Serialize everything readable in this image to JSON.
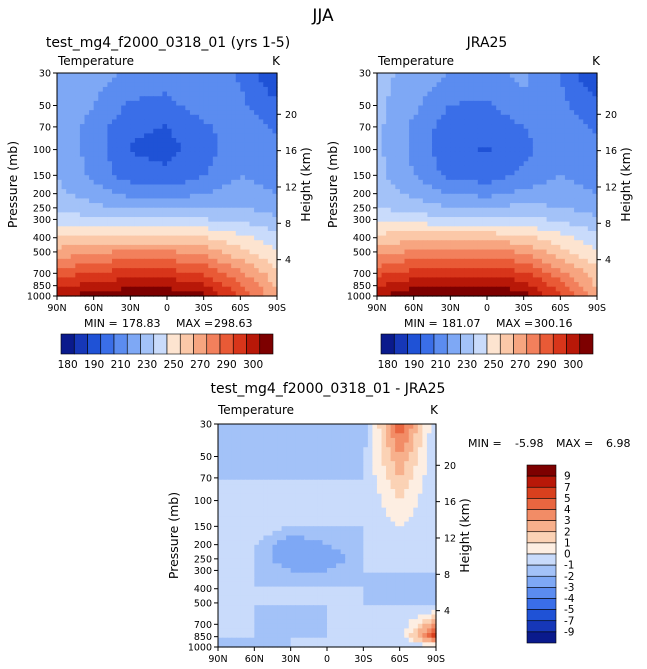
{
  "figure": {
    "season": "JJA"
  },
  "panels": [
    {
      "id": "model",
      "title": "test_mg4_f2000_0318_01 (yrs 1-5)",
      "variable": "Temperature",
      "units": "K",
      "stats": {
        "min_label": "MIN =",
        "min": "178.83",
        "max_label": "MAX =",
        "max": "298.63"
      }
    },
    {
      "id": "obs",
      "title": "JRA25",
      "variable": "Temperature",
      "units": "K",
      "stats": {
        "min_label": "MIN =",
        "min": "181.07",
        "max_label": "MAX =",
        "max": "300.16"
      }
    },
    {
      "id": "diff",
      "title": "test_mg4_f2000_0318_01 - JRA25",
      "variable": "Temperature",
      "units": "K",
      "stats": {
        "min_label": "MIN =",
        "min": "-5.98",
        "max_label": "MAX =",
        "max": "6.98"
      }
    }
  ],
  "axes": {
    "left_label": "Pressure (mb)",
    "right_label": "Height (km)",
    "pressure_ticks": [
      "30",
      "50",
      "70",
      "100",
      "150",
      "200",
      "250",
      "300",
      "400",
      "500",
      "700",
      "850",
      "1000"
    ],
    "height_ticks": [
      "20",
      "16",
      "12",
      "8",
      "4"
    ],
    "lat_ticks": [
      "90N",
      "60N",
      "30N",
      "0",
      "30S",
      "60S",
      "90S"
    ]
  },
  "colorbars": {
    "abs": {
      "colors": [
        "#0a1a8c",
        "#1637b8",
        "#1f52d6",
        "#3a6ee8",
        "#5b8cf0",
        "#7ea8f5",
        "#a3c2f8",
        "#c9dbfb",
        "#fde4d0",
        "#fbc8a8",
        "#f7a580",
        "#f2805c",
        "#e95a36",
        "#d8351a",
        "#b81808",
        "#7d0000"
      ],
      "labels": [
        "180",
        "190",
        "210",
        "230",
        "250",
        "270",
        "290",
        "300"
      ]
    },
    "diff": {
      "colors": [
        "#0a1a8c",
        "#1637b8",
        "#1f52d6",
        "#3a6ee8",
        "#5b8cf0",
        "#7ea8f5",
        "#a3c2f8",
        "#c9dbfb",
        "#fdeee2",
        "#fbd2b5",
        "#f7b08c",
        "#f28c66",
        "#e96640",
        "#d8401e",
        "#b81808",
        "#7d0000"
      ],
      "labels": [
        "9",
        "7",
        "5",
        "4",
        "3",
        "2",
        "1",
        "0",
        "-1",
        "-2",
        "-3",
        "-4",
        "-5",
        "-7",
        "-9"
      ]
    }
  },
  "chart_data": [
    {
      "type": "heatmap",
      "title": "test_mg4_f2000_0318_01 (yrs 1-5)",
      "subtitle": "Temperature",
      "units": "K",
      "xlabel": "",
      "ylabel": "Pressure (mb)",
      "y2label": "Height (km)",
      "x": [
        "90N",
        "60N",
        "30N",
        "0",
        "30S",
        "60S",
        "90S"
      ],
      "y": [
        30,
        50,
        70,
        100,
        150,
        200,
        250,
        300,
        400,
        500,
        700,
        850,
        1000
      ],
      "min": 178.83,
      "max": 298.63,
      "values": [
        [
          222,
          218,
          212,
          210,
          214,
          205,
          190
        ],
        [
          222,
          214,
          205,
          204,
          210,
          208,
          200
        ],
        [
          222,
          210,
          200,
          198,
          205,
          210,
          205
        ],
        [
          222,
          210,
          198,
          196,
          202,
          212,
          208
        ],
        [
          222,
          212,
          202,
          200,
          206,
          214,
          210
        ],
        [
          224,
          218,
          212,
          210,
          214,
          218,
          214
        ],
        [
          228,
          224,
          220,
          220,
          222,
          222,
          218
        ],
        [
          234,
          232,
          230,
          230,
          230,
          228,
          224
        ],
        [
          246,
          248,
          248,
          248,
          246,
          240,
          232
        ],
        [
          256,
          260,
          262,
          262,
          258,
          248,
          238
        ],
        [
          272,
          278,
          280,
          280,
          276,
          262,
          248
        ],
        [
          282,
          288,
          290,
          290,
          286,
          270,
          252
        ],
        [
          290,
          296,
          298,
          298,
          294,
          275,
          255
        ]
      ]
    },
    {
      "type": "heatmap",
      "title": "JRA25",
      "subtitle": "Temperature",
      "units": "K",
      "xlabel": "",
      "ylabel": "Pressure (mb)",
      "y2label": "Height (km)",
      "x": [
        "90N",
        "60N",
        "30N",
        "0",
        "30S",
        "60S",
        "90S"
      ],
      "y": [
        30,
        50,
        70,
        100,
        150,
        200,
        250,
        300,
        400,
        500,
        700,
        850,
        1000
      ],
      "min": 181.07,
      "max": 300.16,
      "values": [
        [
          224,
          220,
          214,
          212,
          216,
          206,
          190
        ],
        [
          224,
          216,
          206,
          205,
          212,
          208,
          200
        ],
        [
          224,
          212,
          202,
          200,
          206,
          210,
          205
        ],
        [
          224,
          212,
          200,
          198,
          204,
          212,
          208
        ],
        [
          224,
          214,
          204,
          202,
          208,
          214,
          210
        ],
        [
          226,
          220,
          214,
          212,
          216,
          218,
          214
        ],
        [
          230,
          226,
          222,
          222,
          224,
          222,
          218
        ],
        [
          236,
          234,
          232,
          232,
          232,
          228,
          224
        ],
        [
          248,
          250,
          250,
          250,
          248,
          240,
          232
        ],
        [
          258,
          262,
          264,
          264,
          260,
          248,
          238
        ],
        [
          274,
          280,
          282,
          282,
          278,
          264,
          248
        ],
        [
          284,
          290,
          292,
          292,
          288,
          272,
          252
        ],
        [
          292,
          298,
          300,
          300,
          296,
          278,
          256
        ]
      ]
    },
    {
      "type": "heatmap",
      "title": "test_mg4_f2000_0318_01 - JRA25",
      "subtitle": "Temperature",
      "units": "K",
      "xlabel": "",
      "ylabel": "Pressure (mb)",
      "y2label": "Height (km)",
      "x": [
        "90N",
        "60N",
        "30N",
        "0",
        "30S",
        "60S",
        "90S"
      ],
      "y": [
        30,
        50,
        70,
        100,
        150,
        200,
        250,
        300,
        400,
        500,
        700,
        850,
        1000
      ],
      "min": -5.98,
      "max": 6.98,
      "values": [
        [
          -1,
          -1,
          -1,
          -1,
          -2,
          5,
          -1
        ],
        [
          -1,
          -2,
          -1,
          -2,
          -1,
          3,
          -1
        ],
        [
          -1,
          -1,
          -1,
          -1,
          -1,
          2,
          -1
        ],
        [
          -1,
          0,
          -1,
          -1,
          -1,
          1,
          -1
        ],
        [
          0,
          0,
          -1,
          -1,
          -1,
          0,
          -1
        ],
        [
          -1,
          -1,
          -3,
          -2,
          -1,
          -1,
          -1
        ],
        [
          -1,
          -1,
          -3,
          -3,
          -1,
          -1,
          0
        ],
        [
          -1,
          -1,
          -2,
          -2,
          -1,
          -1,
          -1
        ],
        [
          -1,
          -1,
          -1,
          -1,
          -1,
          -2,
          -1
        ],
        [
          -1,
          -1,
          -1,
          -1,
          -1,
          -1,
          -2
        ],
        [
          -1,
          -1,
          -2,
          -1,
          -1,
          -1,
          3
        ],
        [
          -1,
          -1,
          -1,
          -1,
          -1,
          -1,
          6
        ],
        [
          -2,
          -2,
          -1,
          -1,
          -1,
          -1,
          -1
        ]
      ]
    }
  ]
}
